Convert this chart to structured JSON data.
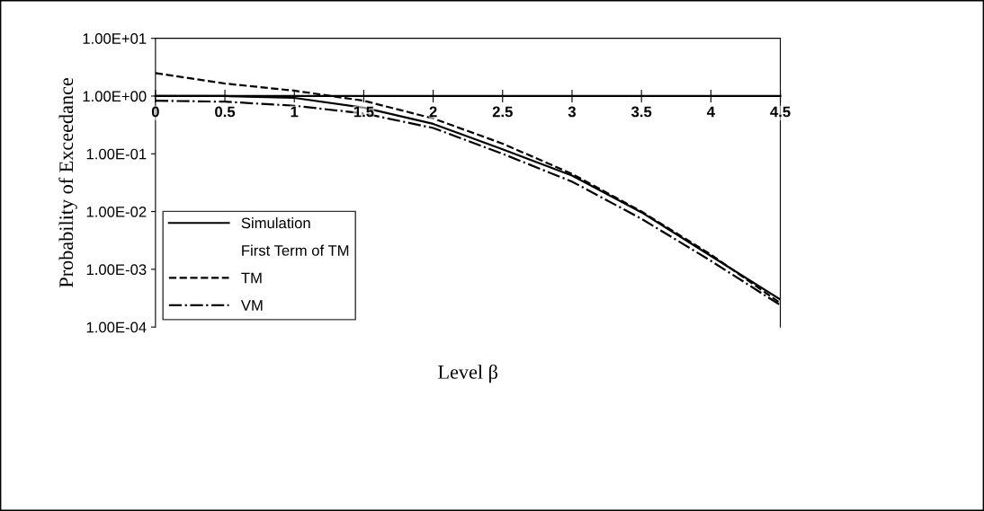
{
  "chart_data": {
    "type": "line",
    "xlabel": "Level β",
    "ylabel": "Probability of Exceedance",
    "x": [
      0,
      0.5,
      1,
      1.5,
      2,
      2.5,
      3,
      3.5,
      4,
      4.5
    ],
    "series": [
      {
        "name": "Simulation",
        "color": "#000000",
        "line_style": "solid",
        "values": [
          1.0,
          1.0,
          0.93,
          0.63,
          0.33,
          0.12,
          0.042,
          0.0097,
          0.0017,
          0.0003
        ]
      },
      {
        "name": "First Term of TM",
        "color": "#000000",
        "line_style": "none",
        "values": [
          null,
          null,
          null,
          null,
          null,
          null,
          null,
          null,
          null,
          null
        ]
      },
      {
        "name": "TM",
        "color": "#000000",
        "line_style": "dashed",
        "values": [
          2.5,
          1.65,
          1.24,
          0.83,
          0.41,
          0.15,
          0.045,
          0.01,
          0.0018,
          0.00026
        ]
      },
      {
        "name": "VM",
        "color": "#000000",
        "line_style": "dashdot",
        "values": [
          0.83,
          0.8,
          0.68,
          0.5,
          0.28,
          0.1,
          0.033,
          0.0075,
          0.0014,
          0.00024
        ]
      }
    ],
    "log": "y",
    "xlim": [
      0,
      4.5
    ],
    "ylim": [
      0.0001,
      10
    ],
    "xticks": [
      0,
      0.5,
      1,
      1.5,
      2,
      2.5,
      3,
      3.5,
      4,
      4.5
    ],
    "yticks": [
      {
        "value": 0.0001,
        "label": "1.00E-04"
      },
      {
        "value": 0.001,
        "label": "1.00E-03"
      },
      {
        "value": 0.01,
        "label": "1.00E-02"
      },
      {
        "value": 0.1,
        "label": "1.00E-01"
      },
      {
        "value": 1,
        "label": "1.00E+00"
      },
      {
        "value": 10,
        "label": "1.00E+01"
      }
    ],
    "grid": false,
    "legend": "bottom left",
    "marker": "none"
  }
}
